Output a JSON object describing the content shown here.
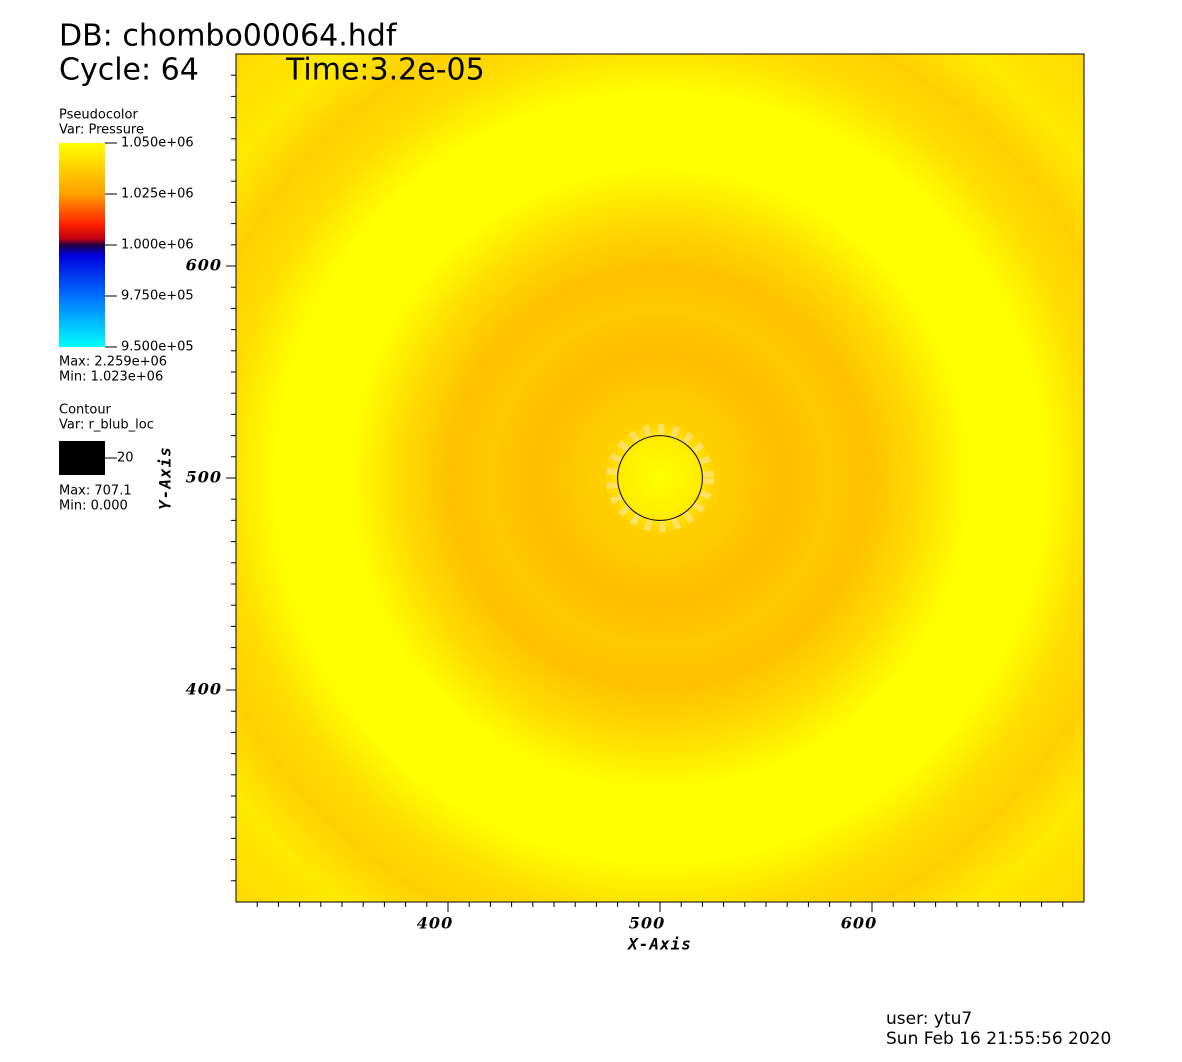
{
  "chart_data": {
    "type": "pseudocolor",
    "title": "DB: chombo00064.hdf",
    "cycle": "Cycle: 64",
    "time": "Time:3.2e-05",
    "xlabel": "X-Axis",
    "ylabel": "Y-Axis",
    "xlim": [
      300,
      700
    ],
    "ylim": [
      300,
      700
    ],
    "xticks": [
      400,
      500,
      600
    ],
    "yticks": [
      400,
      500,
      600
    ],
    "pseudocolor_legend": {
      "plot": "Pseudocolor",
      "var": "Var: Pressure",
      "range": [
        950000,
        1050000
      ],
      "ticks": [
        {
          "value": 1050000,
          "label": "1.050e+06"
        },
        {
          "value": 1025000,
          "label": "1.025e+06"
        },
        {
          "value": 1000000,
          "label": "1.000e+06"
        },
        {
          "value": 975000,
          "label": "9.750e+05"
        },
        {
          "value": 950000,
          "label": "9.500e+05"
        }
      ],
      "max": "Max: 2.259e+06",
      "min": "Min:  1.023e+06"
    },
    "contour_legend": {
      "plot": "Contour",
      "var": "Var: r_blub_loc",
      "levels": [
        20
      ],
      "color": "#000000",
      "max": "Max: 707.1",
      "min": "Min: 0.000"
    },
    "user": "user: ytu7",
    "date": "Sun Feb 16 21:55:56 2020"
  }
}
